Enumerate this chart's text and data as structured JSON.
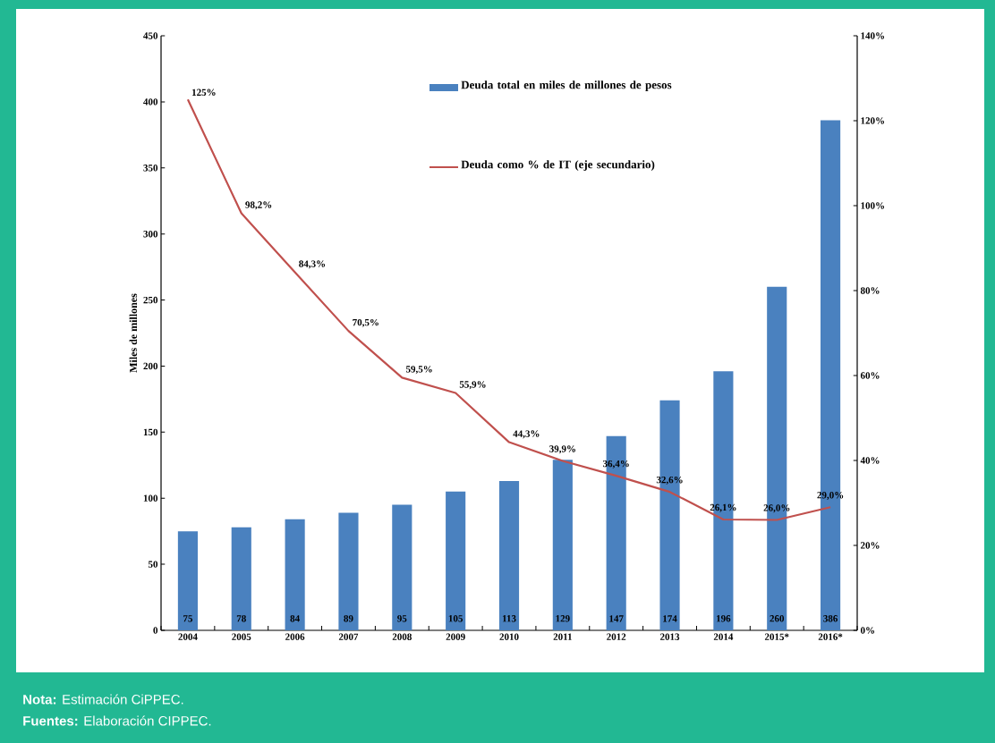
{
  "chart_data": {
    "type": "bar",
    "ylabel": "Miles de millones",
    "categories": [
      "2004",
      "2005",
      "2006",
      "2007",
      "2008",
      "2009",
      "2010",
      "2011",
      "2012",
      "2013",
      "2014",
      "2015*",
      "2016*"
    ],
    "series": [
      {
        "name": "Deuda total en miles de millones de pesos",
        "color": "#4a81bf",
        "values": [
          75,
          78,
          84,
          89,
          95,
          105,
          113,
          129,
          147,
          174,
          196,
          260,
          386
        ],
        "value_labels": [
          "75",
          "78",
          "84",
          "89",
          "95",
          "105",
          "113",
          "129",
          "147",
          "174",
          "196",
          "260",
          "386"
        ]
      },
      {
        "name": "Deuda como % de IT (eje secundario)",
        "type": "line",
        "axis": "y2",
        "color": "#c0504d",
        "values": [
          125,
          98.2,
          84.3,
          70.5,
          59.5,
          55.9,
          44.3,
          39.9,
          36.4,
          32.6,
          26.1,
          26.0,
          29.0
        ],
        "value_labels": [
          "125%",
          "98,2%",
          "84,3%",
          "70,5%",
          "59,5%",
          "55,9%",
          "44,3%",
          "39,9%",
          "36,4%",
          "32,6%",
          "26,1%",
          "26,0%",
          "29,0%"
        ]
      }
    ],
    "ylim": [
      0,
      450
    ],
    "yticks": [
      0,
      50,
      100,
      150,
      200,
      250,
      300,
      350,
      400,
      450
    ],
    "y2lim": [
      0,
      140
    ],
    "y2ticks": [
      {
        "value": 0,
        "label": "0%"
      },
      {
        "value": 20,
        "label": "20%"
      },
      {
        "value": 40,
        "label": "40%"
      },
      {
        "value": 60,
        "label": "60%"
      },
      {
        "value": 80,
        "label": "80%"
      },
      {
        "value": 100,
        "label": "100%"
      },
      {
        "value": 120,
        "label": "120%"
      },
      {
        "value": 140,
        "label": "140%"
      }
    ],
    "legend": "top",
    "grid": false,
    "annotations": [
      "**Nota:** Estimación CiPPEC.",
      "**Fuentes:** Elaboración CIPPEC."
    ]
  }
}
